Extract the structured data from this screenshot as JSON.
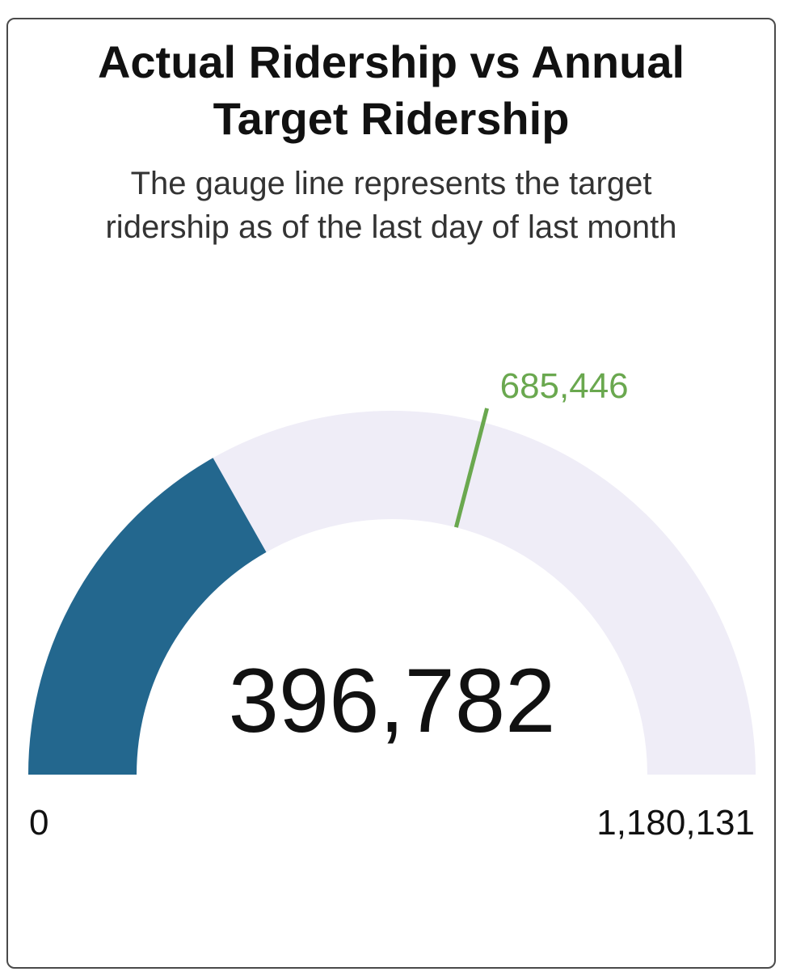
{
  "card": {
    "title_line1": "Actual Ridership vs Annual",
    "title_line2": "Target Ridership",
    "subtitle_line1": "The gauge line represents the target",
    "subtitle_line2": "ridership as of the last day of last month"
  },
  "chart_data": {
    "type": "gauge",
    "value": 396782,
    "value_label": "396,782",
    "min": 0,
    "min_label": "0",
    "max": 1180131,
    "max_label": "1,180,131",
    "target": 685446,
    "target_label": "685,446",
    "colors": {
      "value_fill": "#23678e",
      "track_fill": "#efedf7",
      "target_line": "#6aa84f",
      "target_text": "#6aa84f",
      "text": "#111111"
    }
  }
}
